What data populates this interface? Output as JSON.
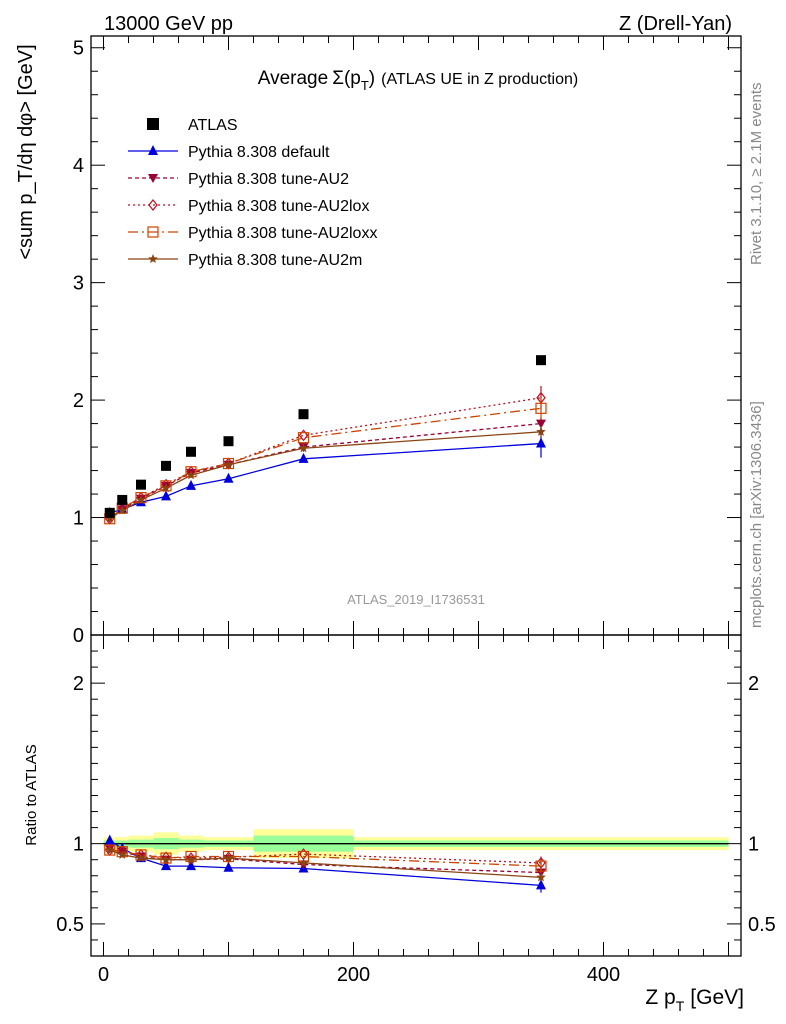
{
  "header": {
    "energy_label": "13000 GeV pp",
    "process_label": "Z (Drell-Yan)"
  },
  "side_labels": {
    "rivet": "Rivet 3.1.10, ≥ 2.1M events",
    "mcplots": "mcplots.cern.ch [arXiv:1306.3436]"
  },
  "watermark": "ATLAS_2019_I1736531",
  "chart_data": [
    {
      "type": "line",
      "title_prefix": "Average",
      "title_sigma": "Σ(p",
      "title_sub": "T",
      "title_close": ")",
      "title_suffix": "(ATLAS UE in Z production)",
      "ylabel": "<sum p_T/dη dφ> [GeV]",
      "ylim": [
        0,
        5.1
      ],
      "xlim": [
        -10,
        510
      ],
      "yticks": [
        0,
        1,
        2,
        3,
        4,
        5
      ],
      "ytick_labels": [
        "0",
        "1",
        "2",
        "3",
        "4",
        "5"
      ],
      "legend_position": "top-left",
      "x": [
        5,
        15,
        30,
        50,
        70,
        100,
        160,
        350
      ],
      "reference": {
        "name": "ATLAS",
        "color": "#000000",
        "values": [
          1.04,
          1.15,
          1.28,
          1.44,
          1.56,
          1.65,
          1.88,
          2.34
        ]
      },
      "series": [
        {
          "name": "Pythia 8.308 default",
          "color": "#0000dd",
          "marker": "triangle-up",
          "dash": "",
          "values": [
            1.04,
            1.07,
            1.13,
            1.18,
            1.27,
            1.33,
            1.5,
            1.63
          ]
        },
        {
          "name": "Pythia 8.308 tune-AU2",
          "color": "#990033",
          "marker": "triangle-down",
          "dash": "4,3",
          "values": [
            1.0,
            1.07,
            1.16,
            1.27,
            1.38,
            1.45,
            1.6,
            1.8
          ]
        },
        {
          "name": "Pythia 8.308 tune-AU2lox",
          "color": "#bb1122",
          "marker": "diamond-open",
          "dash": "2,3",
          "values": [
            0.99,
            1.08,
            1.17,
            1.28,
            1.39,
            1.46,
            1.7,
            2.02
          ]
        },
        {
          "name": "Pythia 8.308 tune-AU2loxx",
          "color": "#cc4400",
          "marker": "square-open",
          "dash": "10,4,2,4",
          "values": [
            0.99,
            1.08,
            1.17,
            1.27,
            1.39,
            1.46,
            1.68,
            1.93
          ]
        },
        {
          "name": "Pythia 8.308 tune-AU2m",
          "color": "#8b4513",
          "marker": "star",
          "dash": "",
          "values": [
            0.99,
            1.06,
            1.15,
            1.25,
            1.36,
            1.45,
            1.59,
            1.73
          ]
        }
      ]
    },
    {
      "type": "line",
      "ylabel": "Ratio to ATLAS",
      "xlabel_main": "Z p",
      "xlabel_sub": "T",
      "xlabel_unit": "[GeV]",
      "ylim": [
        0.3,
        2.3
      ],
      "xlim": [
        -10,
        510
      ],
      "yticks": [
        0.5,
        1,
        2
      ],
      "ytick_labels": [
        "0.5",
        "1",
        "2"
      ],
      "xticks": [
        0,
        200,
        400
      ],
      "xtick_labels": [
        "0",
        "200",
        "400"
      ],
      "bands": [
        {
          "x0": 0,
          "x1": 10,
          "green": 0.02,
          "yellow": 0.04
        },
        {
          "x0": 10,
          "x1": 20,
          "green": 0.02,
          "yellow": 0.04
        },
        {
          "x0": 20,
          "x1": 40,
          "green": 0.025,
          "yellow": 0.05
        },
        {
          "x0": 40,
          "x1": 60,
          "green": 0.035,
          "yellow": 0.07
        },
        {
          "x0": 60,
          "x1": 80,
          "green": 0.025,
          "yellow": 0.05
        },
        {
          "x0": 80,
          "x1": 120,
          "green": 0.02,
          "yellow": 0.04
        },
        {
          "x0": 120,
          "x1": 200,
          "green": 0.05,
          "yellow": 0.09
        },
        {
          "x0": 200,
          "x1": 500,
          "green": 0.02,
          "yellow": 0.04
        }
      ],
      "series": [
        {
          "name": "Pythia 8.308 default",
          "values": [
            1.02,
            0.97,
            0.91,
            0.86,
            0.86,
            0.85,
            0.845,
            0.74
          ]
        },
        {
          "name": "Pythia 8.308 tune-AU2",
          "values": [
            0.97,
            0.95,
            0.92,
            0.9,
            0.9,
            0.905,
            0.87,
            0.82
          ]
        },
        {
          "name": "Pythia 8.308 tune-AU2lox",
          "values": [
            0.96,
            0.95,
            0.93,
            0.915,
            0.91,
            0.915,
            0.935,
            0.88
          ]
        },
        {
          "name": "Pythia 8.308 tune-AU2loxx",
          "values": [
            0.96,
            0.95,
            0.93,
            0.91,
            0.92,
            0.92,
            0.92,
            0.86
          ]
        },
        {
          "name": "Pythia 8.308 tune-AU2m",
          "values": [
            0.96,
            0.93,
            0.91,
            0.9,
            0.9,
            0.91,
            0.88,
            0.79
          ]
        }
      ]
    }
  ]
}
